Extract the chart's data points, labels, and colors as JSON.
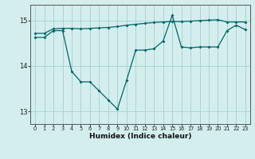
{
  "xlabel": "Humidex (Indice chaleur)",
  "bg_color": "#d4eeee",
  "grid_color": "#aad4d4",
  "line_color": "#006666",
  "xlim": [
    -0.5,
    23.5
  ],
  "ylim": [
    12.72,
    15.35
  ],
  "yticks": [
    13,
    14,
    15
  ],
  "ytick_labels": [
    "13",
    "14",
    "15"
  ],
  "xticks": [
    0,
    1,
    2,
    3,
    4,
    5,
    6,
    7,
    8,
    9,
    10,
    11,
    12,
    13,
    14,
    15,
    16,
    17,
    18,
    19,
    20,
    21,
    22,
    23
  ],
  "series1_x": [
    0,
    1,
    2,
    3,
    4,
    5,
    6,
    7,
    8,
    9,
    10,
    11,
    12,
    13,
    14,
    15,
    16,
    17,
    18,
    19,
    20,
    21,
    22,
    23
  ],
  "series1_y": [
    14.72,
    14.72,
    14.82,
    14.83,
    14.83,
    14.82,
    14.83,
    14.84,
    14.85,
    14.87,
    14.9,
    14.92,
    14.94,
    14.96,
    14.97,
    14.98,
    14.98,
    14.99,
    15.0,
    15.01,
    15.02,
    14.97,
    14.97,
    14.97
  ],
  "series2_x": [
    0,
    1,
    2,
    3,
    4,
    5,
    6,
    7,
    8,
    9,
    10,
    11,
    12,
    13,
    14,
    15,
    16,
    17,
    18,
    19,
    20,
    21,
    22,
    23
  ],
  "series2_y": [
    14.63,
    14.63,
    14.78,
    14.78,
    13.88,
    13.65,
    13.65,
    13.45,
    13.25,
    13.05,
    13.68,
    14.35,
    14.35,
    14.38,
    14.55,
    15.12,
    14.42,
    14.4,
    14.42,
    14.42,
    14.42,
    14.78,
    14.9,
    14.8
  ]
}
